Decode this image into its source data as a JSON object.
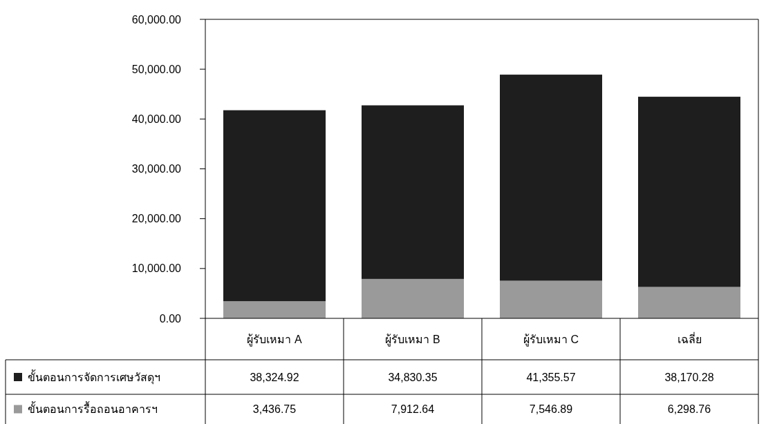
{
  "chart_data": {
    "type": "bar",
    "stacked": true,
    "categories": [
      "ผู้รับเหมา A",
      "ผู้รับเหมา B",
      "ผู้รับเหมา C",
      "เฉลี่ย"
    ],
    "series": [
      {
        "name": "ขั้นตอนการรื้อถอนอาคารฯ",
        "color": "#9a9a9a",
        "values": [
          3436.75,
          7912.64,
          7546.89,
          6298.76
        ],
        "value_labels": [
          "3,436.75",
          "7,912.64",
          "7,546.89",
          "6,298.76"
        ]
      },
      {
        "name": "ขั้นตอนการจัดการเศษวัสดุฯ",
        "color": "#1e1e1e",
        "values": [
          38324.92,
          34830.35,
          41355.57,
          38170.28
        ],
        "value_labels": [
          "38,324.92",
          "34,830.35",
          "41,355.57",
          "38,170.28"
        ]
      }
    ],
    "ylim": [
      0,
      60000
    ],
    "yticks": [
      {
        "value": 0,
        "label": "0.00"
      },
      {
        "value": 10000,
        "label": "10,000.00"
      },
      {
        "value": 20000,
        "label": "20,000.00"
      },
      {
        "value": 30000,
        "label": "30,000.00"
      },
      {
        "value": 40000,
        "label": "40,000.00"
      },
      {
        "value": 50000,
        "label": "50,000.00"
      },
      {
        "value": 60000,
        "label": "60,000.00"
      }
    ],
    "legend": "bottom"
  }
}
